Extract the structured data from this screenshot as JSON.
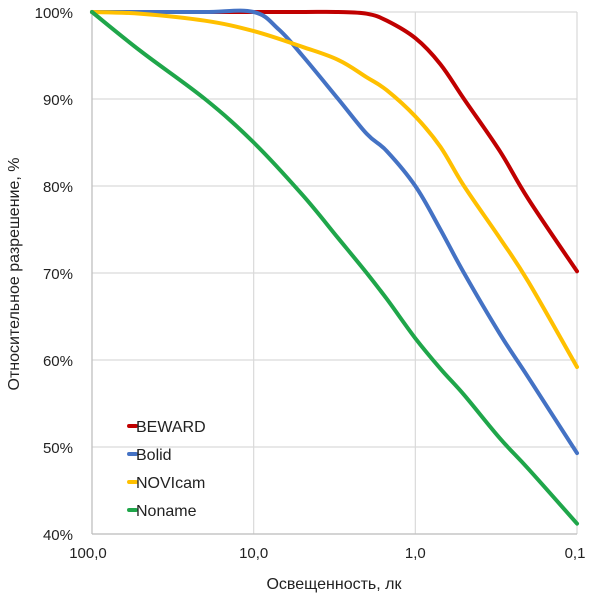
{
  "chart_data": {
    "type": "line",
    "title": "",
    "xlabel": "Освещенность, лк",
    "ylabel": "Относительное разрешение, %",
    "x_scale": "log",
    "x_reversed": true,
    "x_ticks": [
      {
        "value": 100,
        "label": "100,0"
      },
      {
        "value": 10,
        "label": "10,0"
      },
      {
        "value": 1,
        "label": "1,0"
      },
      {
        "value": 0.1,
        "label": "0,1"
      }
    ],
    "ylim": [
      40,
      100
    ],
    "y_ticks": [
      {
        "value": 100,
        "label": "100%"
      },
      {
        "value": 90,
        "label": "90%"
      },
      {
        "value": 80,
        "label": "80%"
      },
      {
        "value": 70,
        "label": "70%"
      },
      {
        "value": 60,
        "label": "60%"
      },
      {
        "value": 50,
        "label": "50%"
      },
      {
        "value": 40,
        "label": "40%"
      }
    ],
    "grid": true,
    "legend_position": "bottom-left",
    "series": [
      {
        "name": "BEWARD",
        "color": "#C00000",
        "x": [
          100,
          50,
          20,
          10,
          5,
          3,
          2,
          1.5,
          1,
          0.7,
          0.5,
          0.3,
          0.2,
          0.1
        ],
        "values": [
          100,
          100,
          100,
          100,
          100,
          100,
          99.8,
          99,
          97,
          94,
          90,
          84,
          78.5,
          70.2
        ]
      },
      {
        "name": "Bolid",
        "color": "#4472C4",
        "x": [
          100,
          50,
          20,
          10,
          7,
          5,
          3,
          2,
          1.5,
          1,
          0.7,
          0.5,
          0.3,
          0.2,
          0.1
        ],
        "values": [
          100,
          100,
          100,
          100,
          98,
          95,
          90,
          86,
          84,
          80,
          75,
          70,
          63,
          58,
          49.3
        ]
      },
      {
        "name": "NOVIcam",
        "color": "#FFC000",
        "x": [
          100,
          50,
          20,
          10,
          5,
          3,
          2,
          1.5,
          1,
          0.7,
          0.5,
          0.3,
          0.2,
          0.1
        ],
        "values": [
          100,
          99.8,
          99,
          97.8,
          96,
          94.5,
          92.5,
          91,
          88,
          84.5,
          80,
          74,
          69,
          59.2
        ]
      },
      {
        "name": "Noname",
        "color": "#1FA64A",
        "x": [
          100,
          50,
          20,
          10,
          5,
          3,
          2,
          1.5,
          1,
          0.7,
          0.5,
          0.3,
          0.2,
          0.1
        ],
        "values": [
          100,
          95.5,
          90,
          85,
          79,
          74,
          70,
          67,
          62.5,
          59,
          56,
          51,
          47.5,
          41.2
        ]
      }
    ]
  }
}
